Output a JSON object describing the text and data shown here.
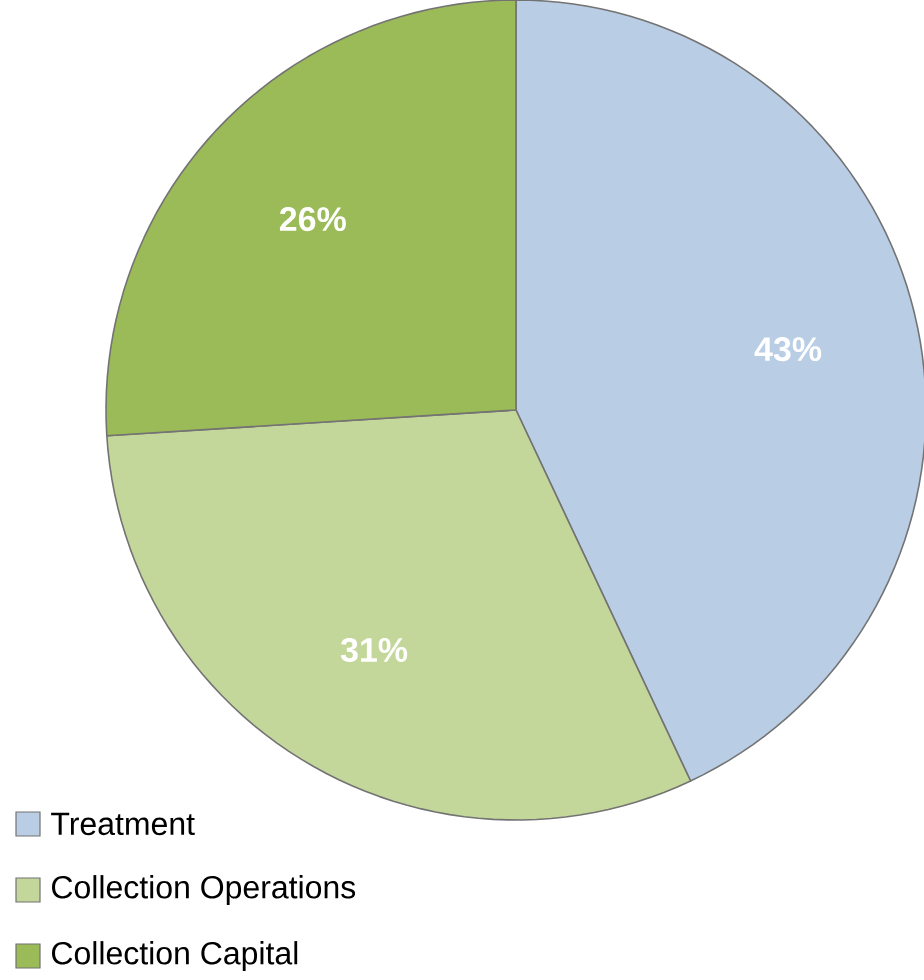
{
  "chart_data": {
    "type": "pie",
    "categories": [
      "Treatment",
      "Collection Operations",
      "Collection Capital"
    ],
    "values": [
      43,
      31,
      26
    ],
    "value_labels": [
      "43%",
      "31%",
      "26%"
    ],
    "colors": [
      "#b9cde5",
      "#c4d79b",
      "#9bbb59"
    ],
    "legend": "bottom left"
  }
}
